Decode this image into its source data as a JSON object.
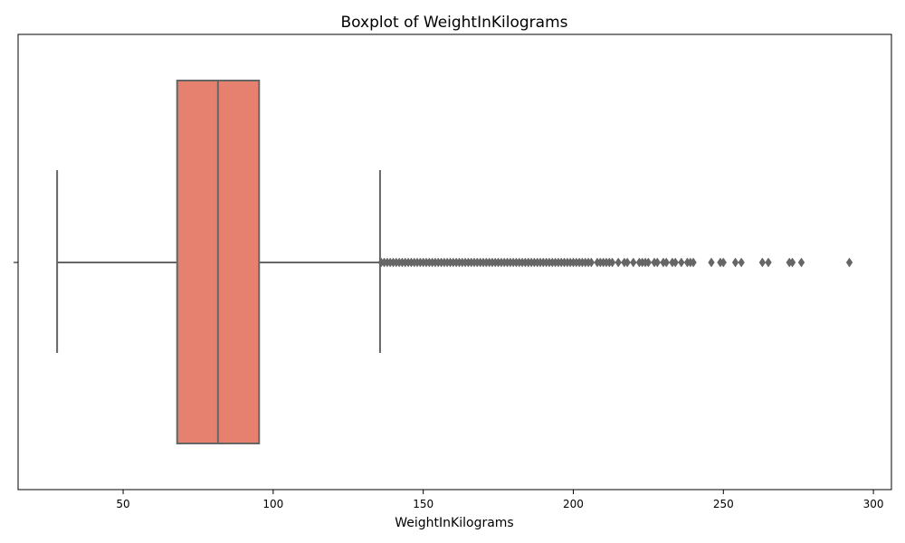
{
  "chart_data": {
    "type": "boxplot",
    "title": "Boxplot of WeightInKilograms",
    "xlabel": "WeightInKilograms",
    "ylabel": "",
    "xlim": [
      15,
      306
    ],
    "xticks": [
      50,
      100,
      150,
      200,
      250,
      300
    ],
    "grid": false,
    "orientation": "horizontal",
    "box_color": "#e5816e",
    "line_color": "#666666",
    "box": {
      "whisker_low": 28,
      "q1": 68,
      "median": 81.6,
      "q3": 95.3,
      "whisker_high": 135.6
    },
    "outliers": [
      136,
      137,
      138,
      139,
      140,
      141,
      142,
      143,
      144,
      145,
      146,
      147,
      148,
      149,
      150,
      151,
      152,
      153,
      154,
      155,
      156,
      157,
      158,
      159,
      160,
      161,
      162,
      163,
      164,
      165,
      166,
      167,
      168,
      169,
      170,
      171,
      172,
      173,
      174,
      175,
      176,
      177,
      178,
      179,
      180,
      181,
      182,
      183,
      184,
      185,
      186,
      187,
      188,
      189,
      190,
      191,
      192,
      193,
      194,
      195,
      196,
      197,
      198,
      199,
      200,
      201,
      202,
      203,
      204,
      205,
      206,
      208,
      209,
      210,
      211,
      212,
      213,
      215,
      217,
      218,
      220,
      222,
      223,
      224,
      225,
      227,
      228,
      230,
      231,
      233,
      234,
      236,
      238,
      239,
      240,
      246,
      249,
      250,
      254,
      256,
      263,
      265,
      272,
      273,
      276,
      292
    ]
  }
}
